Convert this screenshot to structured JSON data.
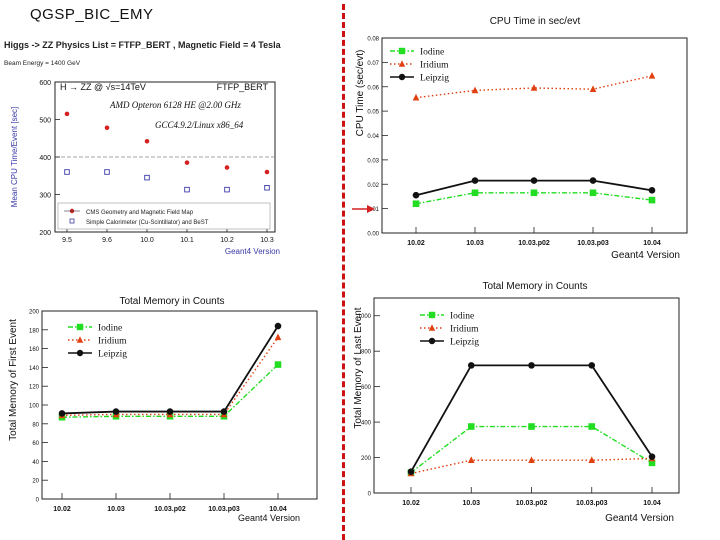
{
  "slide": {
    "title": "QGSP_BIC_EMY",
    "divider_color": "#cc1111"
  },
  "chart_data": [
    {
      "id": "cpu_mean",
      "type": "scatter",
      "header_title": "Higgs -> ZZ Physics List = FTFP_BERT , Magnetic Field = 4 Tesla",
      "header_subtitle": "Beam Energy = 1400 GeV",
      "title_left": "H → ZZ @ √s=14TeV",
      "title_right": "FTFP_BERT",
      "annotation_1": "AMD Opteron 6128 HE @2.00 GHz",
      "annotation_2": "GCC4.9.2/Linux x86_64",
      "xlabel": "Geant4 Version",
      "ylabel": "Mean CPU Time/Event [sec]",
      "categories": [
        "9.5",
        "9.6",
        "10.0",
        "10.1",
        "10.2",
        "10.3"
      ],
      "ylim": [
        200,
        600
      ],
      "yticks": [
        200,
        300,
        400,
        500,
        600
      ],
      "reference_line": 400,
      "series": [
        {
          "name": "CMS Geometry and Magnetic Field Map",
          "marker": "dot",
          "color": "#d42020",
          "values": [
            515,
            478,
            442,
            385,
            372,
            360
          ]
        },
        {
          "name": "Simple Calorimeter (Cu-Scintillator) and BeST",
          "marker": "open-square",
          "color": "#3a3aa8",
          "values": [
            360,
            360,
            345,
            313,
            313,
            318
          ]
        }
      ]
    },
    {
      "id": "cpu_time",
      "type": "line",
      "title": "CPU Time in sec/evt",
      "xlabel": "Geant4 Version",
      "ylabel": "CPU Time (sec/evt)",
      "categories": [
        "10.02",
        "10.03",
        "10.03.p02",
        "10.03.p03",
        "10.04"
      ],
      "ylim": [
        0,
        0.08
      ],
      "yticks": [
        0,
        0.01,
        0.02,
        0.03,
        0.04,
        0.05,
        0.06,
        0.07,
        0.08
      ],
      "series": [
        {
          "name": "Iodine",
          "color": "#22dd22",
          "marker": "square",
          "dash": "dashdot",
          "values": [
            0.012,
            0.0165,
            0.0165,
            0.0165,
            0.0135
          ]
        },
        {
          "name": "Iridium",
          "color": "#e04010",
          "marker": "triangle",
          "dash": "dotted",
          "values": [
            0.0555,
            0.0585,
            0.0595,
            0.059,
            0.0645
          ]
        },
        {
          "name": "Leipzig",
          "color": "#111111",
          "marker": "circle",
          "dash": "solid",
          "values": [
            0.0155,
            0.0215,
            0.0215,
            0.0215,
            0.0175
          ]
        }
      ],
      "arrow_color": "#d42020"
    },
    {
      "id": "mem_first",
      "type": "line",
      "title": "Total Memory in Counts",
      "xlabel": "Geant4 Version",
      "ylabel": "Total Memory of First Event",
      "categories": [
        "10.02",
        "10.03",
        "10.03.p02",
        "10.03.p03",
        "10.04"
      ],
      "ylim": [
        0,
        200
      ],
      "yticks": [
        0,
        20,
        40,
        60,
        80,
        100,
        120,
        140,
        160,
        180,
        200
      ],
      "series": [
        {
          "name": "Iodine",
          "color": "#22dd22",
          "marker": "square",
          "dash": "dashdot",
          "values": [
            87,
            88,
            88,
            88,
            143
          ]
        },
        {
          "name": "Iridium",
          "color": "#e04010",
          "marker": "triangle",
          "dash": "dotted",
          "values": [
            89,
            90,
            90,
            90,
            172
          ]
        },
        {
          "name": "Leipzig",
          "color": "#111111",
          "marker": "circle",
          "dash": "solid",
          "values": [
            91,
            93,
            93,
            93,
            184
          ]
        }
      ]
    },
    {
      "id": "mem_last",
      "type": "line",
      "title": "Total Memory in Counts",
      "xlabel": "Geant4 Version",
      "ylabel": "Total Memory of Last Event",
      "categories": [
        "10.02",
        "10.03",
        "10.03.p02",
        "10.03.p03",
        "10.04"
      ],
      "ylim": [
        0,
        1100
      ],
      "yticks": [
        0,
        200,
        400,
        600,
        800,
        1000
      ],
      "series": [
        {
          "name": "Iodine",
          "color": "#22dd22",
          "marker": "square",
          "dash": "dashdot",
          "values": [
            115,
            375,
            375,
            375,
            170
          ]
        },
        {
          "name": "Iridium",
          "color": "#e04010",
          "marker": "triangle",
          "dash": "dotted",
          "values": [
            110,
            185,
            185,
            185,
            195
          ]
        },
        {
          "name": "Leipzig",
          "color": "#111111",
          "marker": "circle",
          "dash": "solid",
          "values": [
            120,
            720,
            720,
            720,
            205
          ]
        }
      ]
    }
  ]
}
